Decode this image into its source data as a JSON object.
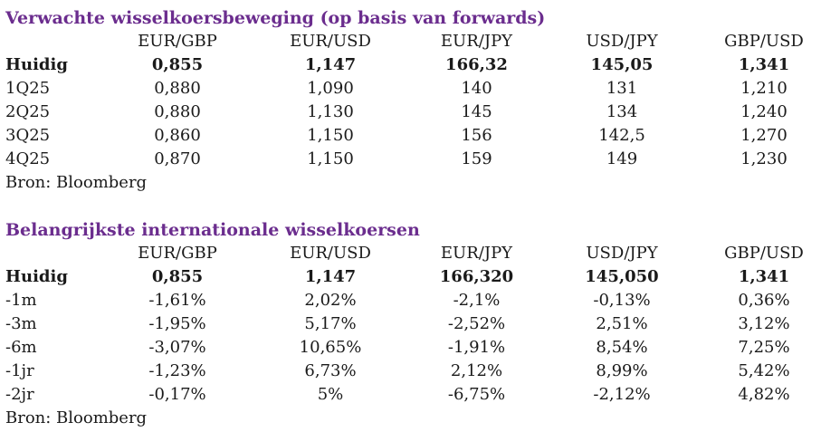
{
  "forecast": {
    "title": "Verwachte wisselkoersbeweging (op basis van forwards)",
    "columns": [
      "EUR/GBP",
      "EUR/USD",
      "EUR/JPY",
      "USD/JPY",
      "GBP/USD"
    ],
    "rows": [
      {
        "label": "Huidig",
        "values": [
          "0,855",
          "1,147",
          "166,32",
          "145,05",
          "1,341"
        ]
      },
      {
        "label": "1Q25",
        "values": [
          "0,880",
          "1,090",
          "140",
          "131",
          "1,210"
        ]
      },
      {
        "label": "2Q25",
        "values": [
          "0,880",
          "1,130",
          "145",
          "134",
          "1,240"
        ]
      },
      {
        "label": "3Q25",
        "values": [
          "0,860",
          "1,150",
          "156",
          "142,5",
          "1,270"
        ]
      },
      {
        "label": "4Q25",
        "values": [
          "0,870",
          "1,150",
          "159",
          "149",
          "1,230"
        ]
      }
    ],
    "source": "Bron: Bloomberg"
  },
  "rates": {
    "title": "Belangrijkste internationale wisselkoersen",
    "columns": [
      "EUR/GBP",
      "EUR/USD",
      "EUR/JPY",
      "USD/JPY",
      "GBP/USD"
    ],
    "rows": [
      {
        "label": "Huidig",
        "values": [
          "0,855",
          "1,147",
          "166,320",
          "145,050",
          "1,341"
        ]
      },
      {
        "label": "-1m",
        "values": [
          "-1,61%",
          "2,02%",
          "-2,1%",
          "-0,13%",
          "0,36%"
        ]
      },
      {
        "label": "-3m",
        "values": [
          "-1,95%",
          "5,17%",
          "-2,52%",
          "2,51%",
          "3,12%"
        ]
      },
      {
        "label": "-6m",
        "values": [
          "-3,07%",
          "10,65%",
          "-1,91%",
          "8,54%",
          "7,25%"
        ]
      },
      {
        "label": "-1jr",
        "values": [
          "-1,23%",
          "6,73%",
          "2,12%",
          "8,99%",
          "5,42%"
        ]
      },
      {
        "label": "-2jr",
        "values": [
          "-0,17%",
          "5%",
          "-6,75%",
          "-2,12%",
          "4,82%"
        ]
      }
    ],
    "source": "Bron: Bloomberg"
  },
  "colors": {
    "title": "#6b2d8e",
    "text": "#1a1a1a",
    "background": "#ffffff"
  }
}
